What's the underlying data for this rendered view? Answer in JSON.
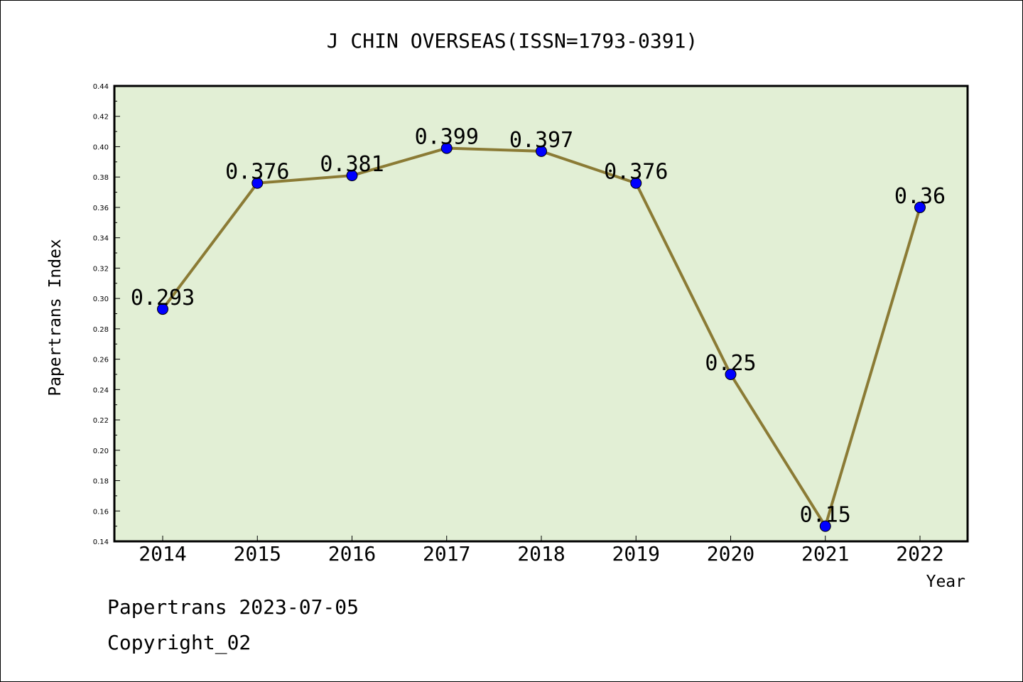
{
  "chart_data": {
    "type": "line",
    "title": "J CHIN OVERSEAS(ISSN=1793-0391)",
    "xlabel": "Year",
    "ylabel": "Papertrans Index",
    "categories": [
      "2014",
      "2015",
      "2016",
      "2017",
      "2018",
      "2019",
      "2020",
      "2021",
      "2022"
    ],
    "values": [
      0.293,
      0.376,
      0.381,
      0.399,
      0.397,
      0.376,
      0.25,
      0.15,
      0.36
    ],
    "data_labels": [
      "0.293",
      "0.376",
      "0.381",
      "0.399",
      "0.397",
      "0.376",
      "0.25",
      "0.15",
      "0.36"
    ],
    "ylim": [
      0.14,
      0.44
    ],
    "yticks": [
      "0.14",
      "0.16",
      "0.18",
      "0.20",
      "0.22",
      "0.24",
      "0.26",
      "0.28",
      "0.30",
      "0.32",
      "0.34",
      "0.36",
      "0.38",
      "0.40",
      "0.42",
      "0.44"
    ],
    "grid": false,
    "legend": "none",
    "colors": {
      "plot_background": "#e2efd5",
      "line": "#8b7b35",
      "marker": "#0000ff"
    }
  },
  "footer": {
    "line1": "Papertrans 2023-07-05",
    "line2": "Copyright_02"
  }
}
